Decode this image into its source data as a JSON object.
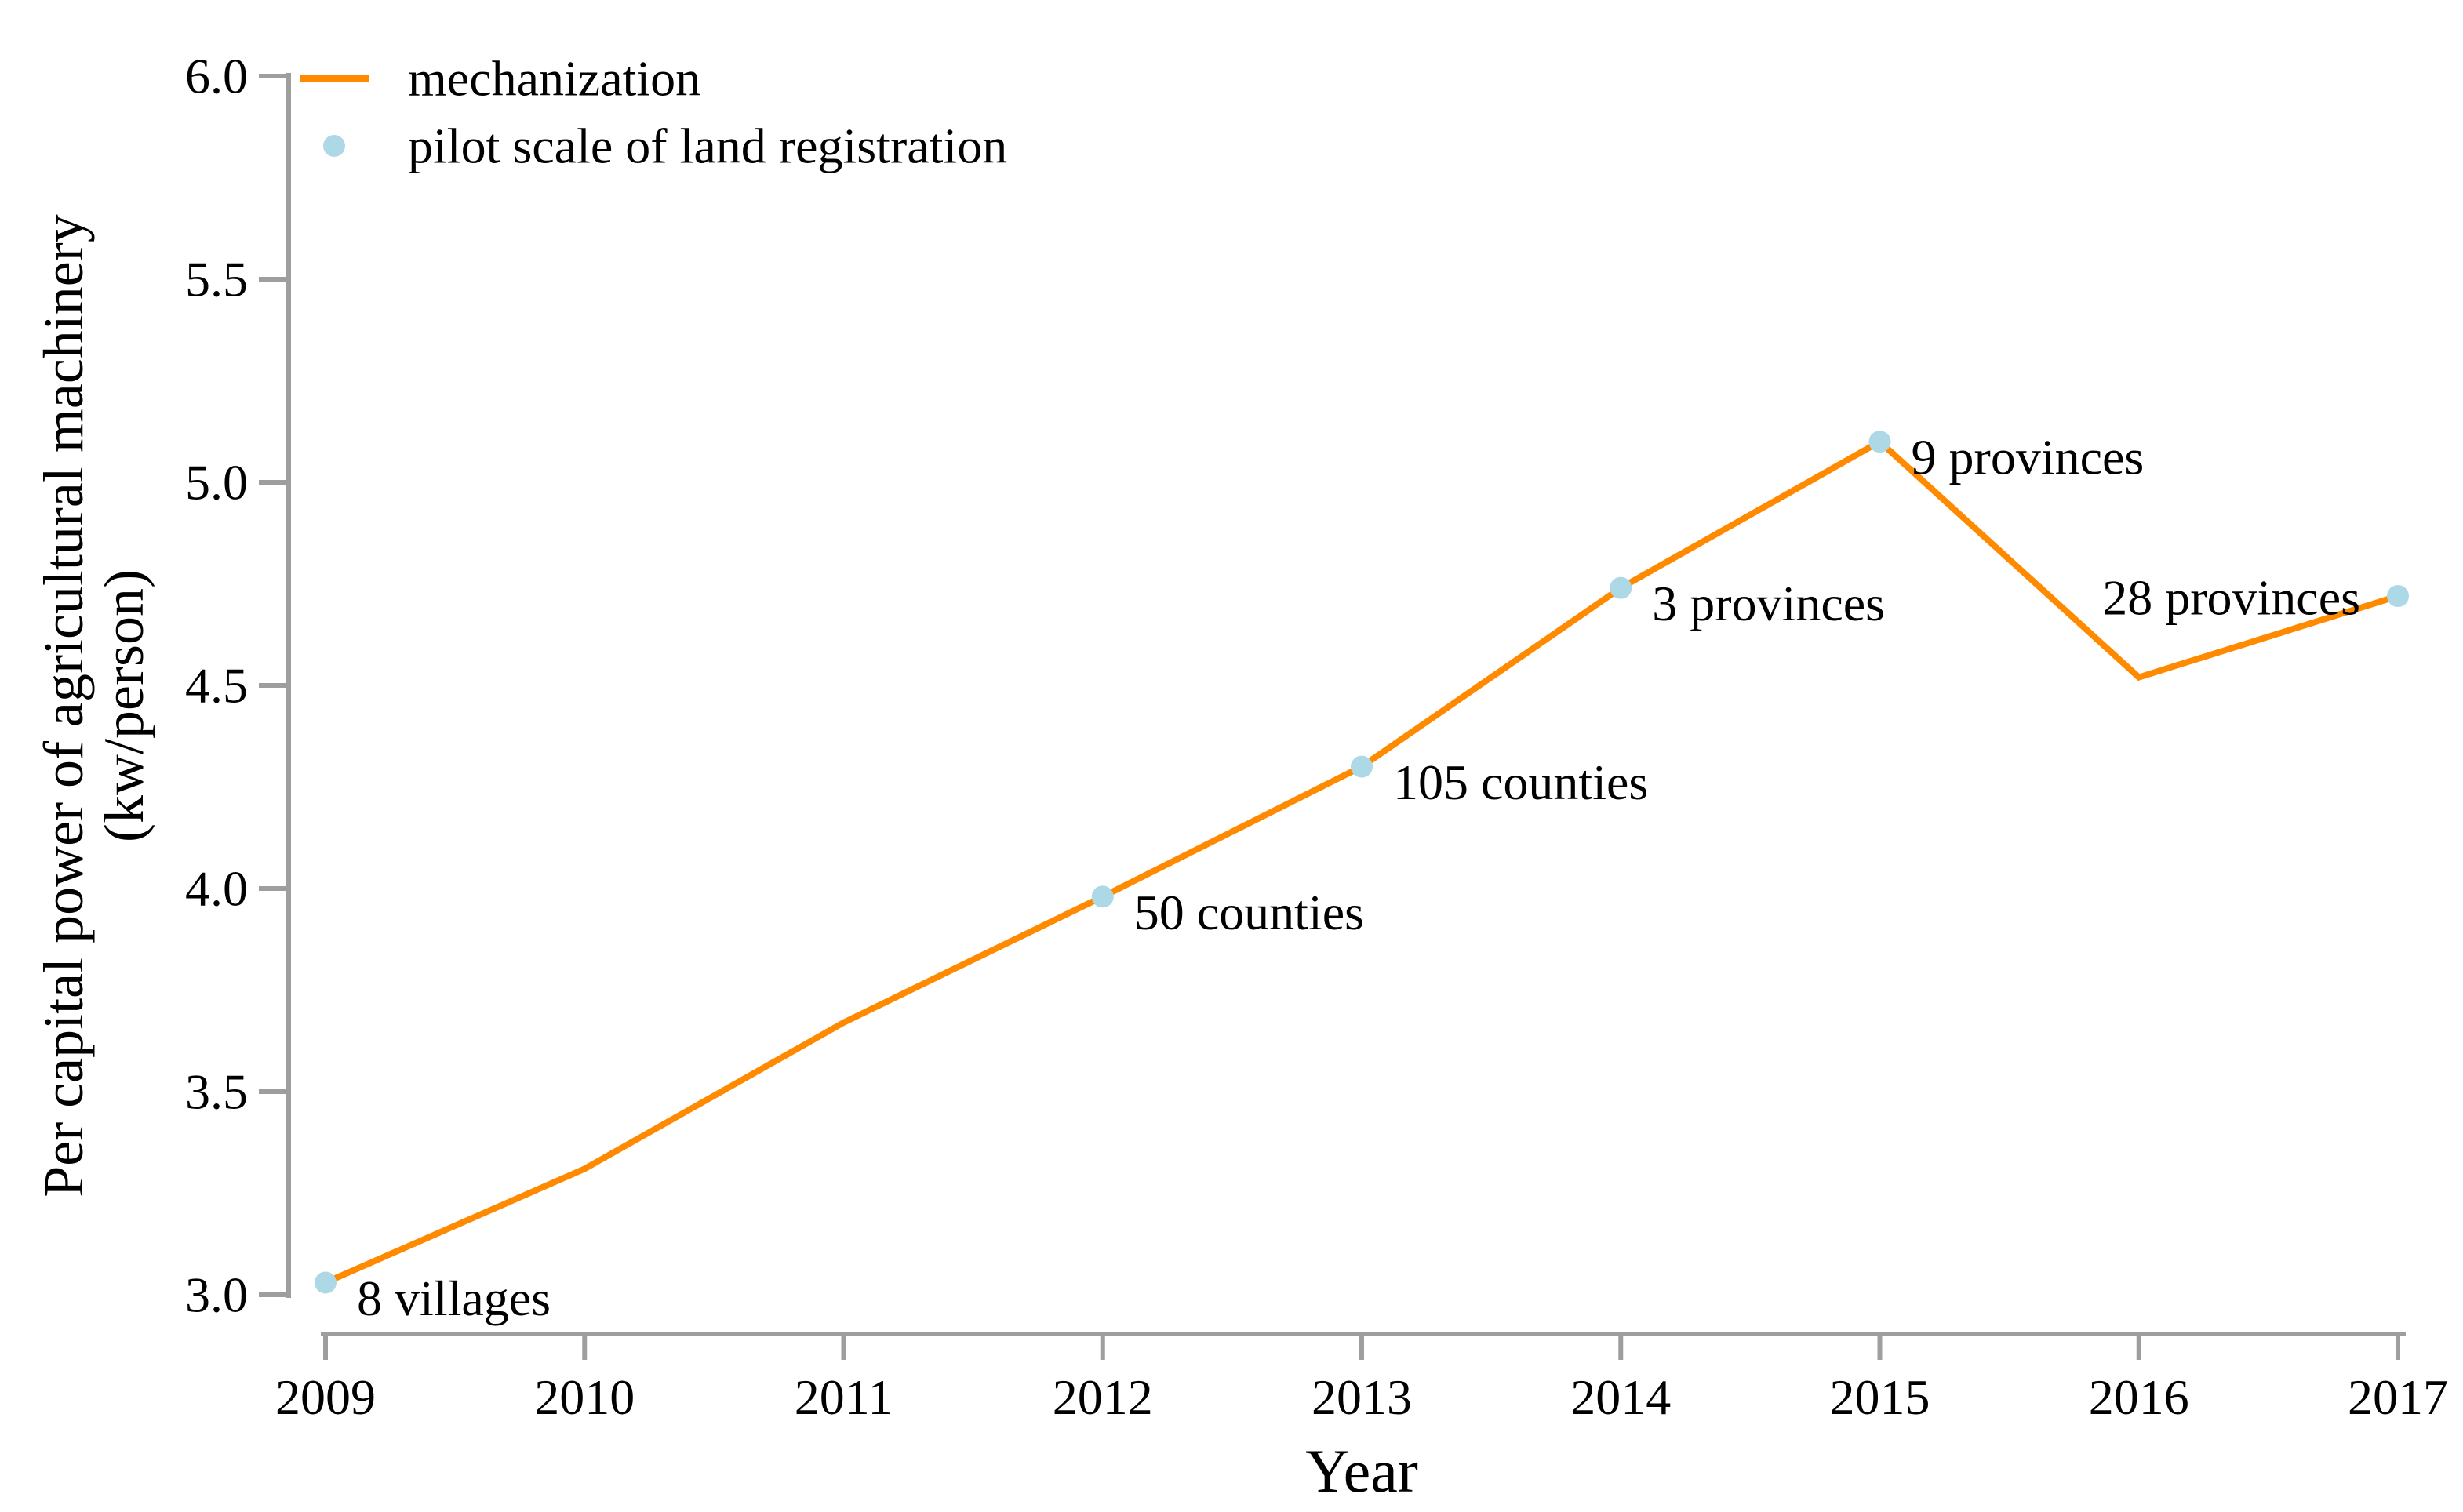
{
  "figure": {
    "background": "#ffffff",
    "axis_color": "#9e9e9e",
    "text_color": "#000000"
  },
  "legend": {
    "position": "top-left",
    "items": [
      {
        "type": "line",
        "label": "mechanization",
        "color": "#ff8a00"
      },
      {
        "type": "dot",
        "label": "pilot scale of land registration",
        "color": "#add8e6"
      }
    ]
  },
  "axes": {
    "x": {
      "title": "Year",
      "ticks": [
        "2009",
        "2010",
        "2011",
        "2012",
        "2013",
        "2014",
        "2015",
        "2016",
        "2017"
      ]
    },
    "y": {
      "title_line1": "Per capital power of agricultural machinery",
      "title_line2": "(kw/person)",
      "ticks": [
        "6.0",
        "5.5",
        "5.0",
        "4.5",
        "4.0",
        "3.5",
        "3.0"
      ]
    }
  },
  "chart_data": {
    "type": "line",
    "title": "",
    "xlabel": "Year",
    "ylabel": "Per capital power of agricultural machinery (kw/person)",
    "x": [
      2009,
      2010,
      2011,
      2012,
      2013,
      2014,
      2015,
      2016,
      2017
    ],
    "xlim": [
      2009,
      2017
    ],
    "ylim": [
      3.0,
      6.0
    ],
    "ytick_step": 0.5,
    "grid": false,
    "legend_position": "top-left",
    "series": [
      {
        "name": "mechanization",
        "kind": "line",
        "color": "#ff8a00",
        "values": [
          3.03,
          3.31,
          3.67,
          3.98,
          4.3,
          4.74,
          5.1,
          4.52,
          4.72
        ]
      },
      {
        "name": "pilot scale of land registration",
        "kind": "scatter",
        "color": "#add8e6",
        "points": [
          {
            "year": 2009,
            "value": 3.03,
            "label": "8 villages",
            "side": "right"
          },
          {
            "year": 2012,
            "value": 3.98,
            "label": "50 counties",
            "side": "right"
          },
          {
            "year": 2013,
            "value": 4.3,
            "label": "105 counties",
            "side": "right"
          },
          {
            "year": 2014,
            "value": 4.74,
            "label": "3 provinces",
            "side": "right"
          },
          {
            "year": 2015,
            "value": 5.1,
            "label": "9 provinces",
            "side": "right"
          },
          {
            "year": 2017,
            "value": 4.72,
            "label": "28 provinces",
            "side": "left"
          }
        ]
      }
    ]
  }
}
